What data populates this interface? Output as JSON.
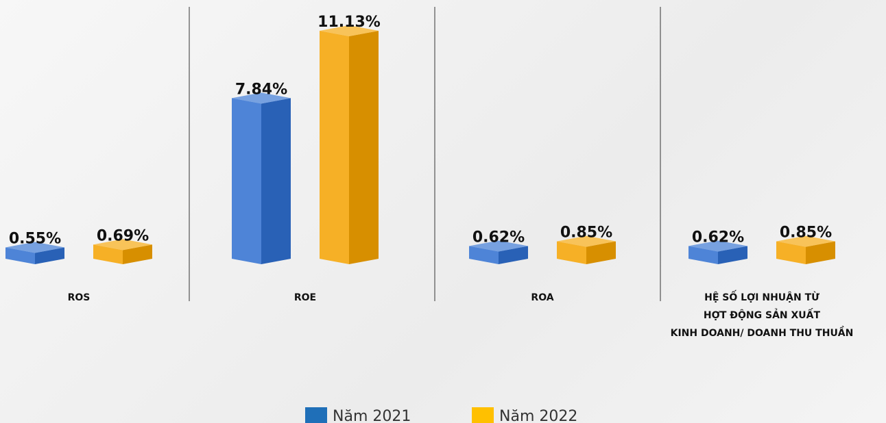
{
  "chart_data": {
    "type": "bar3d",
    "categories": [
      "ROS",
      "ROE",
      "ROA",
      "HỆ SỐ LỢI NHUẬN TỪ\nHỢT ĐỘNG SẢN XUẤT\nKINH DOANH/ DOANH THU THUẦN"
    ],
    "series": [
      {
        "name": "Năm 2021",
        "color": "#2f6fd0",
        "values": [
          0.55,
          7.84,
          0.62,
          0.62
        ],
        "value_labels": [
          "0.55%",
          "7.84%",
          "0.62%",
          "0.62%"
        ]
      },
      {
        "name": "Năm 2022",
        "color": "#f5a300",
        "values": [
          0.69,
          11.13,
          0.85,
          0.85
        ],
        "value_labels": [
          "0.69%",
          "11.13%",
          "0.85%",
          "0.85%"
        ]
      }
    ],
    "legend_colors": [
      "#1f6fb8",
      "#ffc000"
    ]
  }
}
